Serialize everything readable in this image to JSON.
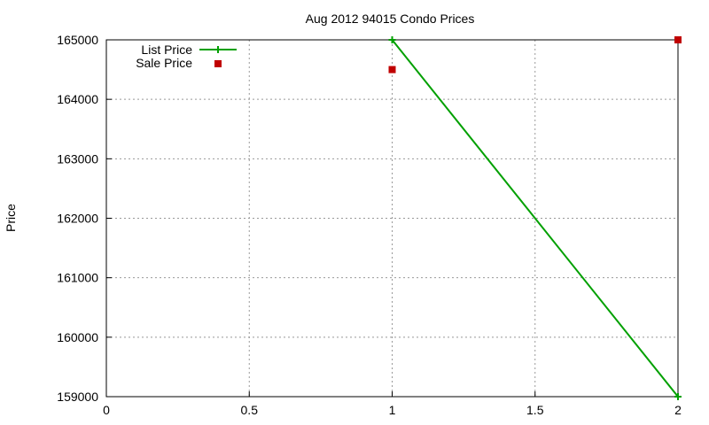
{
  "chart_data": {
    "type": "line",
    "title": "Aug 2012 94015 Condo Prices",
    "xlabel": "",
    "ylabel": "Price",
    "xlim": [
      0,
      2
    ],
    "ylim": [
      159000,
      165000
    ],
    "x_ticks": [
      "0",
      "0.5",
      "1",
      "1.5",
      "2"
    ],
    "y_ticks": [
      "159000",
      "160000",
      "161000",
      "162000",
      "163000",
      "164000",
      "165000"
    ],
    "grid": true,
    "legend_position": "top-left",
    "series": [
      {
        "name": "List Price",
        "style": "linespoints",
        "color": "#00a000",
        "x": [
          1,
          2
        ],
        "values": [
          165000,
          159000
        ]
      },
      {
        "name": "Sale Price",
        "style": "points",
        "color": "#c00000",
        "x": [
          1,
          2
        ],
        "values": [
          164500,
          165000
        ]
      }
    ]
  }
}
